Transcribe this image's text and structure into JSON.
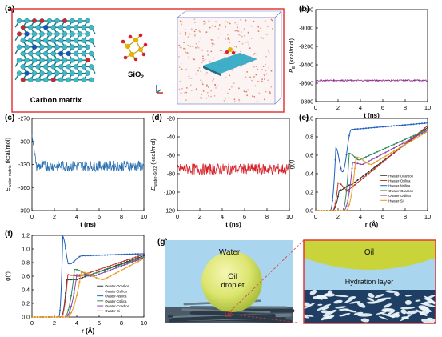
{
  "panels": {
    "a": {
      "label": "(a)",
      "caption_carbon": "Carbon matrix",
      "caption_sio2": "SiO",
      "caption_sio2_sub": "2"
    },
    "b": {
      "label": "(b)"
    },
    "c": {
      "label": "(c)"
    },
    "d": {
      "label": "(d)"
    },
    "e": {
      "label": "(e)"
    },
    "f": {
      "label": "(f)"
    },
    "g": {
      "label": "(g)",
      "water": "Water",
      "oil_droplet_1": "Oil",
      "oil_droplet_2": "droplet",
      "oil": "Oil",
      "hydration_layer": "Hydration layer"
    }
  },
  "chart_data": [
    {
      "panel": "b",
      "type": "line",
      "ylabel_main": "P",
      "ylabel_sub": "E",
      "ylabel_unit": " (kcal/mol)",
      "xlabel": "t (ns)",
      "xlim": [
        0,
        10
      ],
      "ylim": [
        -9800,
        -8800
      ],
      "xticks": [
        "0",
        "2",
        "4",
        "6",
        "8",
        "10"
      ],
      "yticks": [
        "-8800",
        "-9000",
        "-9200",
        "-9400",
        "-9600",
        "-9800"
      ],
      "series": [
        {
          "color": "#8e2a8f",
          "mean": -9570,
          "noise": 8
        }
      ]
    },
    {
      "panel": "c",
      "type": "line",
      "ylabel_main": "E",
      "ylabel_sub": "water-matrix",
      "ylabel_unit": " (kcal/mol)",
      "xlabel": "t (ns)",
      "xlim": [
        0,
        10
      ],
      "ylim": [
        -390,
        -270
      ],
      "xticks": [
        "0",
        "2",
        "4",
        "6",
        "8",
        "10"
      ],
      "yticks": [
        "-270",
        "-300",
        "-330",
        "-360",
        "-390"
      ],
      "series": [
        {
          "color": "#2a6fb0",
          "start": -290,
          "mean": -332,
          "noise": 7
        }
      ]
    },
    {
      "panel": "d",
      "type": "line",
      "ylabel_main": "E",
      "ylabel_sub": "water-SiO2",
      "ylabel_unit": " (kcal/mol)",
      "xlabel": "t (ns)",
      "xlim": [
        0,
        10
      ],
      "ylim": [
        -120,
        -20
      ],
      "xticks": [
        "0",
        "2",
        "4",
        "6",
        "8",
        "10"
      ],
      "yticks": [
        "-20",
        "-40",
        "-60",
        "-80",
        "-100",
        "-120"
      ],
      "series": [
        {
          "color": "#d6222a",
          "mean": -75,
          "noise": 6
        }
      ]
    },
    {
      "panel": "e",
      "type": "line",
      "ylabel": "g(r)",
      "xlabel": "r (Å)",
      "xlim": [
        0,
        10
      ],
      "ylim": [
        0,
        1.0
      ],
      "xticks": [
        "0",
        "2",
        "4",
        "6",
        "8",
        "10"
      ],
      "yticks": [
        "0.0",
        "0.2",
        "0.4",
        "0.6",
        "0.8",
        "1.0"
      ],
      "legend": [
        "Hwater-Ocarbon",
        "Hwater-Osilica",
        "Hwater-Nsilica",
        "Owater-Ocarbon",
        "Owater-Osilica",
        "Hwater-Si"
      ],
      "series": [
        {
          "color": "#333333",
          "onset": 1.5,
          "peak_r": 2.1,
          "peak_g": 0.22,
          "plateau": 0.9,
          "min_r": 3.2,
          "min_g": 0.28
        },
        {
          "color": "#c0392b",
          "onset": 1.5,
          "peak_r": 2.0,
          "peak_g": 0.3,
          "plateau": 0.92,
          "min_r": 2.9,
          "min_g": 0.22
        },
        {
          "color": "#1f5fbf",
          "onset": 1.3,
          "peak_r": 1.8,
          "peak_g": 0.68,
          "plateau": 0.95,
          "min_r": 2.4,
          "min_g": 0.42,
          "second_r": 3.2,
          "second_g": 0.88
        },
        {
          "color": "#2e8b57",
          "onset": 2.4,
          "peak_r": 3.0,
          "peak_g": 0.62,
          "plateau": 0.88,
          "min_r": 3.9,
          "min_g": 0.55
        },
        {
          "color": "#8e44ad",
          "onset": 2.5,
          "peak_r": 3.3,
          "peak_g": 0.52,
          "plateau": 0.87,
          "min_r": 4.2,
          "min_g": 0.5
        },
        {
          "color": "#e69a1f",
          "onset": 2.7,
          "peak_r": 3.6,
          "peak_g": 0.58,
          "plateau": 0.86,
          "min_r": 5.0,
          "min_g": 0.5
        }
      ]
    },
    {
      "panel": "f",
      "type": "line",
      "ylabel": "g(r)",
      "xlabel": "r (Å)",
      "xlim": [
        0,
        10
      ],
      "ylim": [
        0,
        1.2
      ],
      "xticks": [
        "0",
        "2",
        "4",
        "6",
        "8",
        "10"
      ],
      "yticks": [
        "0.0",
        "0.2",
        "0.4",
        "0.6",
        "0.8",
        "1.0",
        "1.2"
      ],
      "legend": [
        "Owater-Ocarbon",
        "Owater-Osilica",
        "Owater-Nsilica",
        "Owater-Csilica",
        "Owater-Ccarbon",
        "Owater-Si"
      ],
      "series": [
        {
          "color": "#333333",
          "onset": 2.6,
          "peak_r": 3.1,
          "peak_g": 0.55,
          "plateau": 0.9,
          "min_r": 4.0,
          "min_g": 0.55
        },
        {
          "color": "#c0392b",
          "onset": 2.6,
          "peak_r": 3.2,
          "peak_g": 0.62,
          "plateau": 0.92,
          "min_r": 4.2,
          "min_g": 0.6
        },
        {
          "color": "#1f5fbf",
          "onset": 2.4,
          "peak_r": 2.75,
          "peak_g": 1.18,
          "plateau": 0.93,
          "min_r": 3.3,
          "min_g": 0.78,
          "second_r": 4.5,
          "second_g": 0.9
        },
        {
          "color": "#2e8b57",
          "onset": 2.9,
          "peak_r": 3.8,
          "peak_g": 0.7,
          "plateau": 0.88,
          "min_r": 5.2,
          "min_g": 0.62
        },
        {
          "color": "#8e44ad",
          "onset": 3.0,
          "peak_r": 4.0,
          "peak_g": 0.62,
          "plateau": 0.87,
          "min_r": 5.5,
          "min_g": 0.6
        },
        {
          "color": "#e69a1f",
          "onset": 3.1,
          "peak_r": 4.4,
          "peak_g": 0.66,
          "plateau": 0.86,
          "min_r": 6.4,
          "min_g": 0.55
        }
      ]
    }
  ]
}
